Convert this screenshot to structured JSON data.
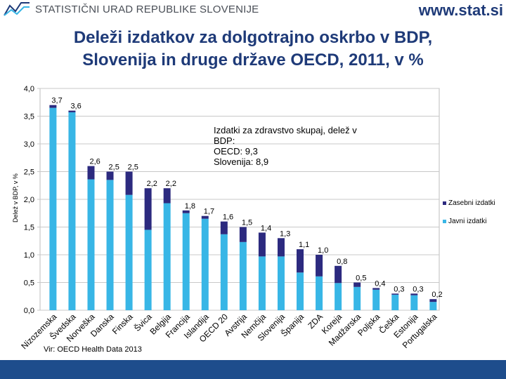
{
  "header": {
    "org_name": "STATISTIČNI URAD REPUBLIKE SLOVENIJE",
    "website": "www.stat.si"
  },
  "title": {
    "line1": "Deleži izdatkov za dolgotrajno oskrbo v BDP,",
    "line2": "Slovenija in druge države OECD, 2011, v %"
  },
  "colors": {
    "public": "#38b6e6",
    "private": "#2c2a7f",
    "grid": "#c8c8c8",
    "brand": "#1e3a78",
    "footer": "#1e4d8c"
  },
  "chart_data": {
    "type": "bar",
    "stacked": true,
    "ylabel": "Delež v BDP, v %",
    "ylim": [
      0,
      4
    ],
    "yticks": [
      "0,0",
      "0,5",
      "1,0",
      "1,5",
      "2,0",
      "2,5",
      "3,0",
      "3,5",
      "4,0"
    ],
    "categories": [
      "Nizozemska",
      "Švedska",
      "Norveška",
      "Danska",
      "Finska",
      "Švica",
      "Belgija",
      "Francija",
      "Islandija",
      "OECD 20",
      "Avstrija",
      "Nemčija",
      "Slovenija",
      "Španija",
      "ZDA",
      "Koreja",
      "Madžarska",
      "Poljska",
      "Češka",
      "Estonija",
      "Portugalska"
    ],
    "totals_labels": [
      "3,7",
      "3,6",
      "2,6",
      "2,5",
      "2,5",
      "2,2",
      "2,2",
      "1,8",
      "1,7",
      "1,6",
      "1,5",
      "1,4",
      "1,3",
      "1,1",
      "1,0",
      "0,8",
      "0,5",
      "0,4",
      "0,3",
      "0,3",
      "0,2"
    ],
    "series": [
      {
        "name": "Javni izdatki",
        "values": [
          3.65,
          3.57,
          2.36,
          2.35,
          2.08,
          1.45,
          1.93,
          1.75,
          1.65,
          1.37,
          1.23,
          0.97,
          0.97,
          0.68,
          0.61,
          0.49,
          0.42,
          0.37,
          0.28,
          0.27,
          0.15
        ]
      },
      {
        "name": "Zasebni izdatki",
        "values": [
          0.05,
          0.03,
          0.24,
          0.15,
          0.42,
          0.75,
          0.27,
          0.05,
          0.05,
          0.23,
          0.27,
          0.43,
          0.33,
          0.42,
          0.39,
          0.31,
          0.08,
          0.03,
          0.02,
          0.03,
          0.05
        ]
      }
    ],
    "legend": [
      "Zasebni izdatki",
      "Javni izdatki"
    ],
    "annotation": [
      "Izdatki za zdravstvo skupaj, delež v",
      "BDP:",
      "OECD: 9,3",
      "Slovenija: 8,9"
    ],
    "source": "Vir: OECD Health Data 2013"
  }
}
